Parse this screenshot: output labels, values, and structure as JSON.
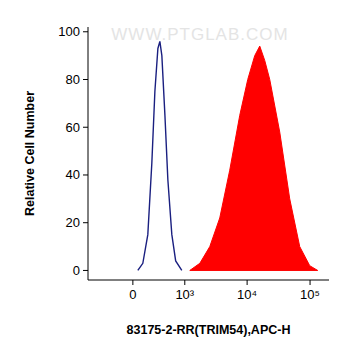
{
  "chart_data": {
    "type": "line",
    "x_label": "83175-2-RR(TRIM54),APC-H",
    "y_label": "Relative Cell Number",
    "annotations": [
      "WWW.PTGLAB.COM"
    ],
    "log": "x",
    "xlim": [
      -760,
      200000
    ],
    "xticks": [
      0,
      {
        "value": 1000,
        "label": "10³"
      },
      {
        "value": 10000,
        "label": "10⁴"
      },
      {
        "value": 100000,
        "label": "10⁵"
      }
    ],
    "ylim": [
      -4,
      102
    ],
    "yticks": [
      0,
      20,
      40,
      60,
      80,
      100
    ],
    "grid": false,
    "series": [
      {
        "type": "line",
        "color": "#1a1f80",
        "x": [
          56,
          114,
          176,
          230,
          274,
          321,
          354,
          389,
          447,
          508,
          600,
          701,
          891
        ],
        "values": [
          0,
          3,
          15,
          45,
          75,
          93,
          96,
          90,
          65,
          38,
          15,
          4,
          0
        ]
      },
      {
        "type": "area",
        "color": "#ff0000",
        "x": [
          1209,
          1760,
          2543,
          3669,
          5290,
          7634,
          10230,
          13210,
          15880,
          19040,
          22880,
          32980,
          47520,
          68530,
          98800,
          132300
        ],
        "values": [
          0,
          3,
          10,
          22,
          42,
          65,
          80,
          90,
          94,
          88,
          80,
          58,
          30,
          10,
          2,
          0
        ]
      }
    ]
  }
}
